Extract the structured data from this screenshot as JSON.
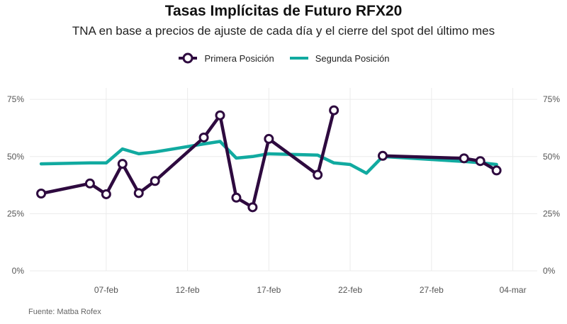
{
  "chart_data": {
    "type": "line",
    "title": "Tasas Implícitas de Futuro RFX20",
    "subtitle": "TNA en base a precios de ajuste de cada día y el cierre del spot del último mes",
    "source": "Fuente: Matba Rofex",
    "xlabel": "",
    "ylabel": "",
    "grid": true,
    "legend_position": "top-center",
    "y_ticks": [
      "0%",
      "25%",
      "50%",
      "75%"
    ],
    "y_tick_values": [
      0,
      25,
      50,
      75
    ],
    "ylim": [
      0,
      80
    ],
    "x_ticks": [
      "07-feb",
      "12-feb",
      "17-feb",
      "22-feb",
      "27-feb",
      "04-mar"
    ],
    "x_tick_days": [
      7,
      12,
      17,
      22,
      27,
      32
    ],
    "xlim": [
      2.3,
      33.5
    ],
    "series": [
      {
        "name": "Primera Posición",
        "color": "#2e0a3f",
        "markers": true,
        "segments": [
          [
            {
              "x": 3,
              "y": 33.8
            },
            {
              "x": 6,
              "y": 38.2
            },
            {
              "x": 7,
              "y": 33.5
            },
            {
              "x": 8,
              "y": 46.8
            },
            {
              "x": 9,
              "y": 34.0
            },
            {
              "x": 10,
              "y": 39.3
            },
            {
              "x": 13,
              "y": 58.3
            },
            {
              "x": 14,
              "y": 68.0
            },
            {
              "x": 15,
              "y": 32.0
            },
            {
              "x": 16,
              "y": 27.8
            },
            {
              "x": 17,
              "y": 57.7
            },
            {
              "x": 20,
              "y": 42.0
            },
            {
              "x": 21,
              "y": 70.2
            }
          ],
          [
            {
              "x": 24,
              "y": 50.3
            },
            {
              "x": 29,
              "y": 49.2
            },
            {
              "x": 30,
              "y": 48.0
            },
            {
              "x": 31,
              "y": 43.9
            }
          ]
        ]
      },
      {
        "name": "Segunda Posición",
        "color": "#11aaa0",
        "markers": false,
        "segments": [
          [
            {
              "x": 3,
              "y": 46.8
            },
            {
              "x": 6,
              "y": 47.2
            },
            {
              "x": 7,
              "y": 47.2
            },
            {
              "x": 8,
              "y": 53.3
            },
            {
              "x": 9,
              "y": 51.2
            },
            {
              "x": 10,
              "y": 52.0
            },
            {
              "x": 13,
              "y": 55.5
            },
            {
              "x": 14,
              "y": 56.6
            },
            {
              "x": 15,
              "y": 49.3
            },
            {
              "x": 16,
              "y": 50.0
            },
            {
              "x": 17,
              "y": 51.2
            },
            {
              "x": 20,
              "y": 50.6
            },
            {
              "x": 21,
              "y": 47.2
            },
            {
              "x": 22,
              "y": 46.5
            },
            {
              "x": 23,
              "y": 42.7
            },
            {
              "x": 24,
              "y": 50.0
            },
            {
              "x": 29,
              "y": 47.8
            },
            {
              "x": 30,
              "y": 47.3
            },
            {
              "x": 31,
              "y": 46.5
            }
          ]
        ]
      }
    ]
  }
}
